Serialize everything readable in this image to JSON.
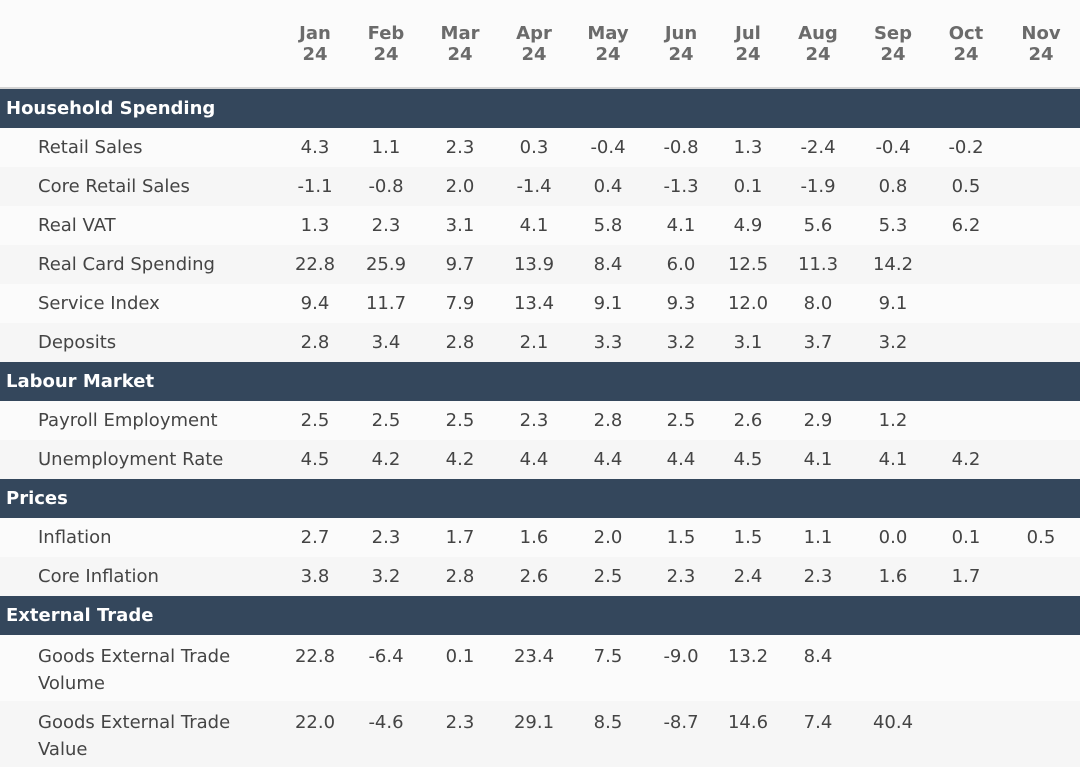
{
  "columns": [
    {
      "m": "Jan",
      "y": "24"
    },
    {
      "m": "Feb",
      "y": "24"
    },
    {
      "m": "Mar",
      "y": "24"
    },
    {
      "m": "Apr",
      "y": "24"
    },
    {
      "m": "May",
      "y": "24"
    },
    {
      "m": "Jun",
      "y": "24"
    },
    {
      "m": "Jul",
      "y": "24"
    },
    {
      "m": "Aug",
      "y": "24"
    },
    {
      "m": "Sep",
      "y": "24"
    },
    {
      "m": "Oct",
      "y": "24"
    },
    {
      "m": "Nov",
      "y": "24"
    }
  ],
  "sections": [
    {
      "title": "Household Spending",
      "rows": [
        {
          "label": "Retail Sales",
          "values": [
            "4.3",
            "1.1",
            "2.3",
            "0.3",
            "-0.4",
            "-0.8",
            "1.3",
            "-2.4",
            "-0.4",
            "-0.2",
            ""
          ]
        },
        {
          "label": "Core Retail Sales",
          "values": [
            "-1.1",
            "-0.8",
            "2.0",
            "-1.4",
            "0.4",
            "-1.3",
            "0.1",
            "-1.9",
            "0.8",
            "0.5",
            ""
          ]
        },
        {
          "label": "Real VAT",
          "values": [
            "1.3",
            "2.3",
            "3.1",
            "4.1",
            "5.8",
            "4.1",
            "4.9",
            "5.6",
            "5.3",
            "6.2",
            ""
          ]
        },
        {
          "label": "Real Card Spending",
          "values": [
            "22.8",
            "25.9",
            "9.7",
            "13.9",
            "8.4",
            "6.0",
            "12.5",
            "11.3",
            "14.2",
            "",
            ""
          ]
        },
        {
          "label": "Service Index",
          "values": [
            "9.4",
            "11.7",
            "7.9",
            "13.4",
            "9.1",
            "9.3",
            "12.0",
            "8.0",
            "9.1",
            "",
            ""
          ]
        },
        {
          "label": "Deposits",
          "values": [
            "2.8",
            "3.4",
            "2.8",
            "2.1",
            "3.3",
            "3.2",
            "3.1",
            "3.7",
            "3.2",
            "",
            ""
          ]
        }
      ]
    },
    {
      "title": "Labour Market",
      "rows": [
        {
          "label": "Payroll Employment",
          "values": [
            "2.5",
            "2.5",
            "2.5",
            "2.3",
            "2.8",
            "2.5",
            "2.6",
            "2.9",
            "1.2",
            "",
            ""
          ]
        },
        {
          "label": "Unemployment Rate",
          "values": [
            "4.5",
            "4.2",
            "4.2",
            "4.4",
            "4.4",
            "4.4",
            "4.5",
            "4.1",
            "4.1",
            "4.2",
            ""
          ]
        }
      ]
    },
    {
      "title": "Prices",
      "rows": [
        {
          "label": "Inflation",
          "values": [
            "2.7",
            "2.3",
            "1.7",
            "1.6",
            "2.0",
            "1.5",
            "1.5",
            "1.1",
            "0.0",
            "0.1",
            "0.5"
          ]
        },
        {
          "label": "Core Inflation",
          "values": [
            "3.8",
            "3.2",
            "2.8",
            "2.6",
            "2.5",
            "2.3",
            "2.4",
            "2.3",
            "1.6",
            "1.7",
            ""
          ]
        }
      ]
    },
    {
      "title": "External Trade",
      "rows": [
        {
          "label": "Goods External Trade Volume",
          "values": [
            "22.8",
            "-6.4",
            "0.1",
            "23.4",
            "7.5",
            "-9.0",
            "13.2",
            "8.4",
            "",
            "",
            ""
          ]
        },
        {
          "label": "Goods External Trade Value",
          "values": [
            "22.0",
            "-4.6",
            "2.3",
            "29.1",
            "8.5",
            "-8.7",
            "14.6",
            "7.4",
            "40.4",
            "",
            ""
          ]
        }
      ]
    }
  ]
}
